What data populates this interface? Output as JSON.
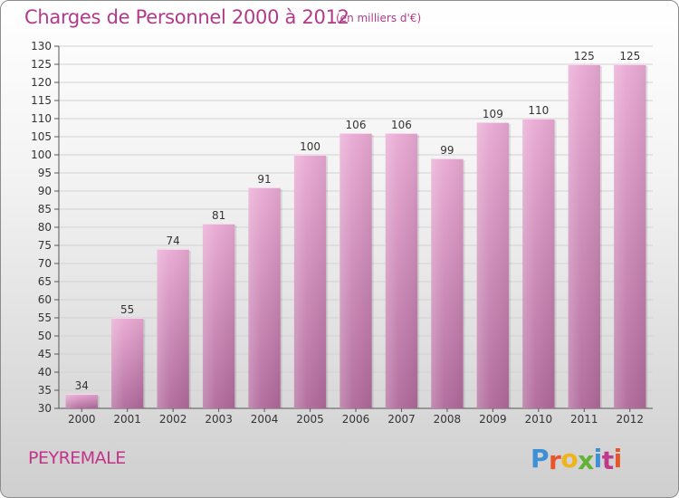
{
  "title": "Charges de Personnel 2000 à 2012",
  "subtitle": "(en milliers d'€)",
  "commune": "PEYREMALE",
  "logo": {
    "letters": [
      "P",
      "r",
      "o",
      "x",
      "i",
      "t",
      "i"
    ],
    "colors": [
      "#3d8fd6",
      "#e8542c",
      "#f0b31a",
      "#62b234",
      "#3d8fd6",
      "#c0398a",
      "#e8542c"
    ]
  },
  "chart_data": {
    "type": "bar",
    "categories": [
      "2000",
      "2001",
      "2002",
      "2003",
      "2004",
      "2005",
      "2006",
      "2007",
      "2008",
      "2009",
      "2010",
      "2011",
      "2012"
    ],
    "values": [
      34,
      55,
      74,
      81,
      91,
      100,
      106,
      106,
      99,
      109,
      110,
      125,
      125
    ],
    "ylim": [
      30,
      130
    ],
    "yticks": [
      30,
      35,
      40,
      45,
      50,
      55,
      60,
      65,
      70,
      75,
      80,
      85,
      90,
      95,
      100,
      105,
      110,
      115,
      120,
      125,
      130
    ],
    "grid": true,
    "bar_color_top": "#e9a9d3",
    "bar_color_bottom": "#b0699b"
  }
}
